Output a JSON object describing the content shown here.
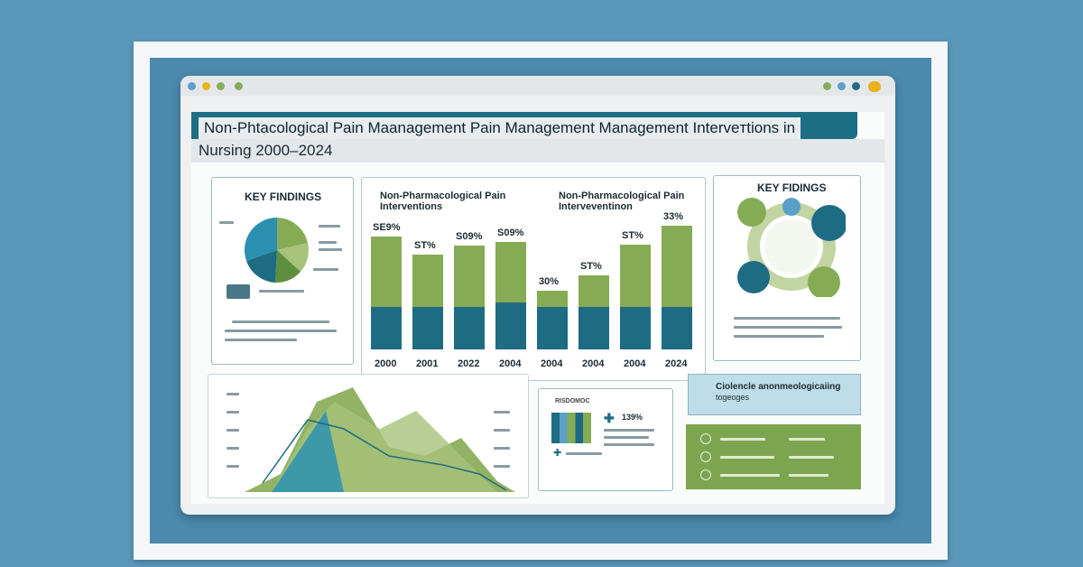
{
  "header": {
    "title_line1": "Non-Phtacological Pain Maanagement Pain Management Management Interveтtions in",
    "title_line2": "Nursing 2000–2024"
  },
  "key_findings_left": {
    "title": "KEY FINDINGS"
  },
  "bar_chart": {
    "left_title_line1": "Non-Pharmacological Pain",
    "left_title_line2": "Interventions",
    "right_title_line1": "Non-Pharmacological Pain",
    "right_title_line2": "Interveventinon"
  },
  "key_findings_right": {
    "title": "KEY FIDINGS"
  },
  "info_box": {
    "line1": "Ciolencle anonmeologicaiing",
    "line2": "togeoges"
  },
  "mini_chart": {
    "heading": "RISDOMOC",
    "value": "139%"
  },
  "colors": {
    "green": "#86ab55",
    "teal": "#1e6b84",
    "light_blue_bg": "#5a97bb"
  },
  "chart_data": {
    "type": "bar",
    "categories": [
      "2000",
      "2001",
      "2022",
      "2004",
      "2004",
      "2004",
      "2004",
      "2024"
    ],
    "value_labels": [
      "SE9%",
      "ST%",
      "S09%",
      "S09%",
      "30%",
      "ST%",
      "ST%",
      "33%"
    ],
    "series": [
      {
        "values": [
          38,
          38,
          38,
          42,
          38,
          38,
          38,
          38
        ]
      },
      {
        "values": [
          62,
          46,
          54,
          53,
          14,
          28,
          55,
          72
        ]
      }
    ]
  }
}
